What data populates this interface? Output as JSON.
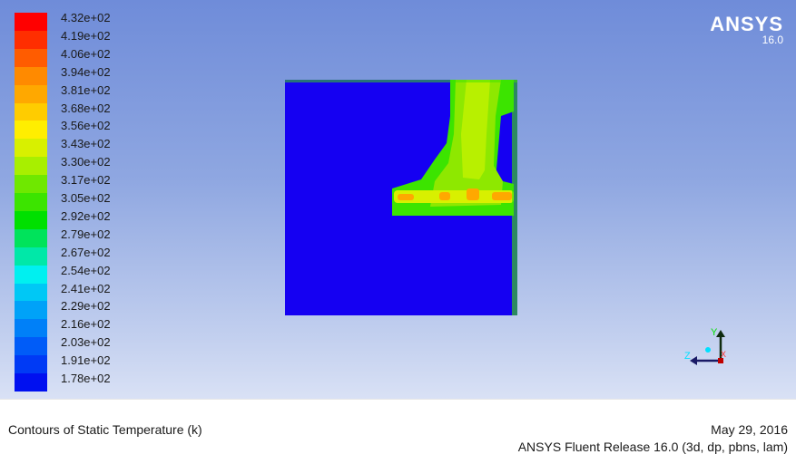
{
  "legend": {
    "colors": [
      "#ff0000",
      "#ff2e00",
      "#ff5c00",
      "#ff8a00",
      "#ffa800",
      "#ffcc00",
      "#ffee00",
      "#d8f000",
      "#a8ef00",
      "#6fe800",
      "#3ce400",
      "#00e000",
      "#00e35b",
      "#00e8a8",
      "#00f0f0",
      "#00c8f5",
      "#00a2f8",
      "#0080f8",
      "#005cf8",
      "#003af5",
      "#0010f0"
    ],
    "ticks": [
      "4.32e+02",
      "4.19e+02",
      "4.06e+02",
      "3.94e+02",
      "3.81e+02",
      "3.68e+02",
      "3.56e+02",
      "3.43e+02",
      "3.30e+02",
      "3.17e+02",
      "3.05e+02",
      "2.92e+02",
      "2.79e+02",
      "2.67e+02",
      "2.54e+02",
      "2.41e+02",
      "2.29e+02",
      "2.16e+02",
      "2.03e+02",
      "1.91e+02",
      "1.78e+02"
    ]
  },
  "logo": {
    "name": "ANSYS",
    "version": "16.0"
  },
  "axes": {
    "y": "Y",
    "z": "Z",
    "x": "X"
  },
  "footer": {
    "title": "Contours of Static Temperature (k)",
    "date": "May 29, 2016",
    "release": "ANSYS Fluent Release 16.0 (3d, dp, pbns, lam)"
  },
  "colors": {
    "domain_blue": "#1500f2",
    "hot_green": "#3ce400",
    "hot_core": "#ffa800"
  }
}
